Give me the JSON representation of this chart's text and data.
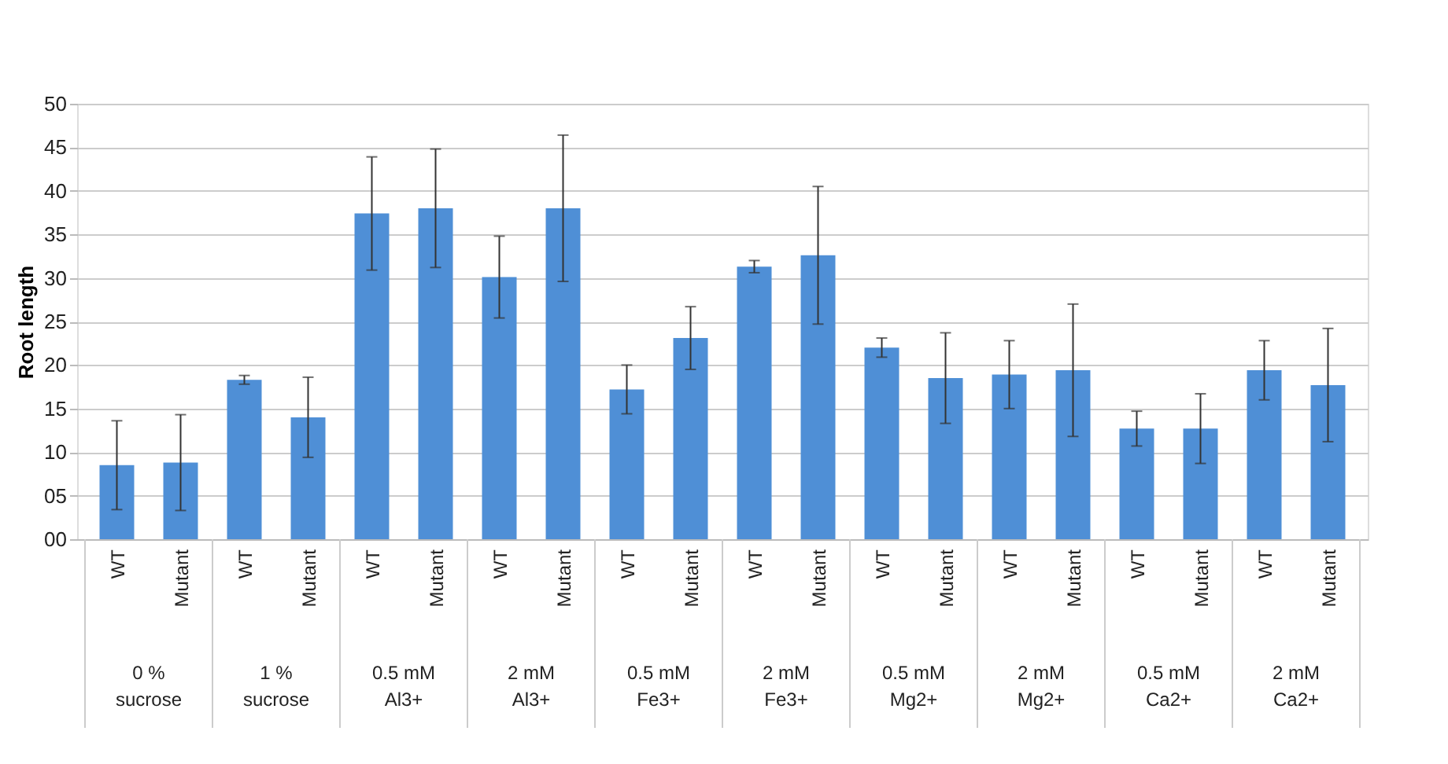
{
  "chart_data": {
    "type": "bar",
    "ylabel": "Root length",
    "categories": [
      "WT",
      "Mutant",
      "WT",
      "Mutant",
      "WT",
      "Mutant",
      "WT",
      "Mutant",
      "WT",
      "Mutant",
      "WT",
      "Mutant",
      "WT",
      "Mutant",
      "WT",
      "Mutant",
      "WT",
      "Mutant",
      "WT",
      "Mutant"
    ],
    "values": [
      8.5,
      8.8,
      18.3,
      14.0,
      37.4,
      38.0,
      30.1,
      38.0,
      17.2,
      23.1,
      31.3,
      32.6,
      22.0,
      18.5,
      18.9,
      19.4,
      12.7,
      12.7,
      19.4,
      17.7
    ],
    "errors": [
      5.1,
      5.5,
      0.5,
      4.6,
      6.5,
      6.8,
      4.7,
      8.4,
      2.8,
      3.6,
      0.7,
      7.9,
      1.1,
      5.2,
      3.9,
      7.6,
      2.0,
      4.0,
      3.4,
      6.5
    ],
    "color": "#4f8fd6",
    "annotations": [
      "0 % sucrose",
      "1 % sucrose",
      "0.5 mM Al3+",
      "2 mM Al3+",
      "0.5 mM Fe3+",
      "2 mM Fe3+",
      "0.5 mM Mg2+",
      "2 mM Mg2+",
      "0.5 mM Ca2+",
      "2 mM Ca2+"
    ],
    "ylim": [
      0,
      50
    ],
    "yticks": [
      {
        "value": 0,
        "label": "00"
      },
      {
        "value": 5,
        "label": "05"
      },
      10,
      15,
      20,
      25,
      30,
      35,
      40,
      45,
      50
    ],
    "grid": "y"
  }
}
